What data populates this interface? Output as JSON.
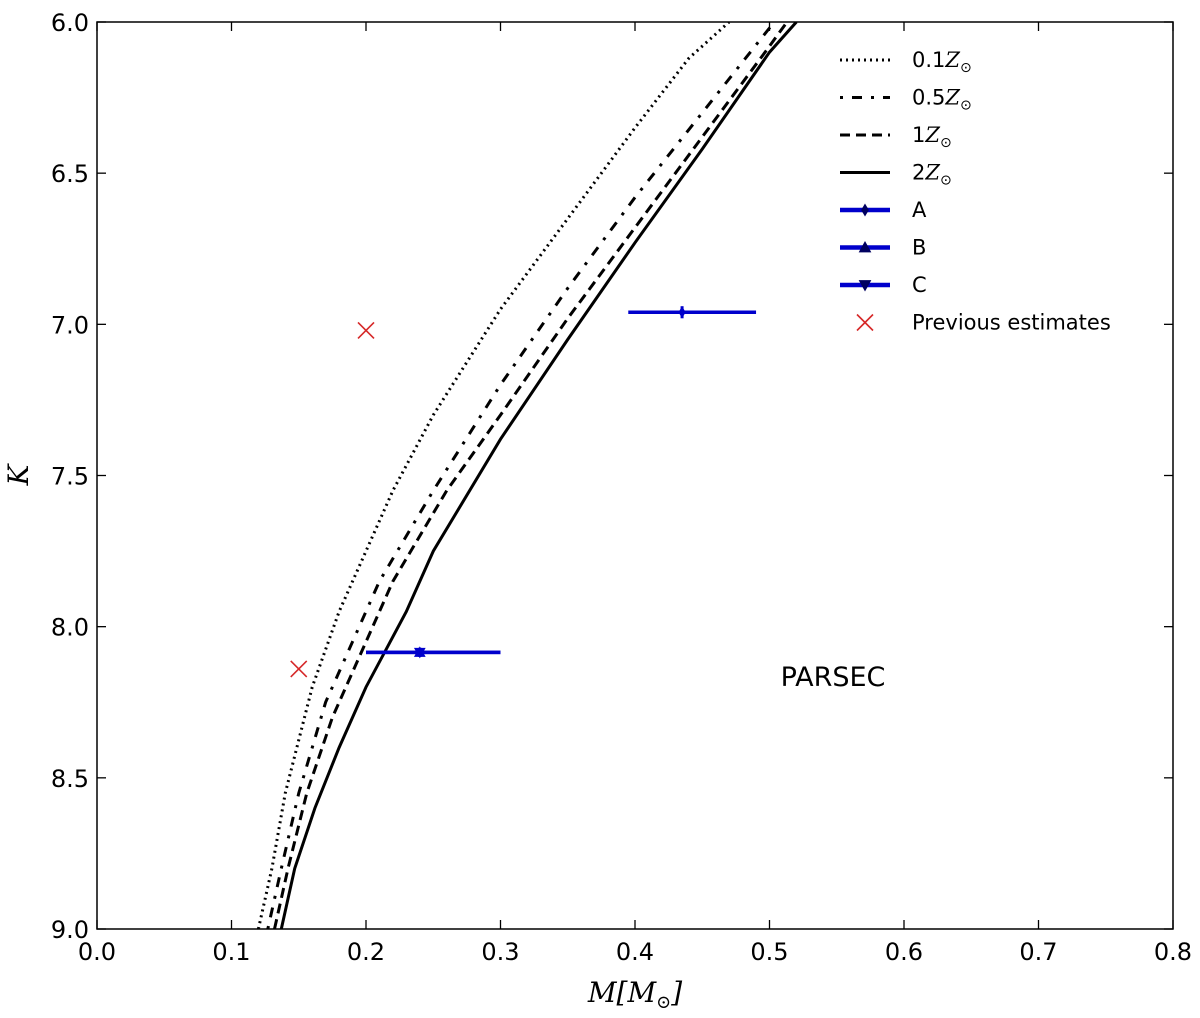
{
  "chart_data": {
    "type": "line",
    "title": "",
    "xlabel": "M[M_⊙]",
    "xlabel_parts": {
      "main": "M[M",
      "sub": "⊙",
      "close": "]"
    },
    "ylabel": "K",
    "xlim": [
      0.0,
      0.8
    ],
    "ylim": [
      6.0,
      9.0
    ],
    "y_inverted": true,
    "grid": false,
    "legend_position": "top-right",
    "x_ticks": [
      "0.0",
      "0.1",
      "0.2",
      "0.3",
      "0.4",
      "0.5",
      "0.6",
      "0.7",
      "0.8"
    ],
    "y_ticks": [
      "6.0",
      "6.5",
      "7.0",
      "7.5",
      "8.0",
      "8.5",
      "9.0"
    ],
    "annotation": "PARSEC",
    "colors": {
      "isochrone": "#000000",
      "measurement": "#0000cc",
      "previous": "#d62728"
    },
    "series": [
      {
        "name": "0.1Z_⊙",
        "label_num": "0.1",
        "label_sym": "Z",
        "label_sub": "⊙",
        "style": "dotted",
        "points": [
          [
            0.12,
            9.0
          ],
          [
            0.13,
            8.8
          ],
          [
            0.14,
            8.55
          ],
          [
            0.16,
            8.2
          ],
          [
            0.18,
            7.95
          ],
          [
            0.2,
            7.75
          ],
          [
            0.22,
            7.55
          ],
          [
            0.25,
            7.3
          ],
          [
            0.3,
            6.95
          ],
          [
            0.35,
            6.65
          ],
          [
            0.4,
            6.35
          ],
          [
            0.44,
            6.12
          ],
          [
            0.47,
            6.0
          ]
        ]
      },
      {
        "name": "0.5Z_⊙",
        "label_num": "0.5",
        "label_sym": "Z",
        "label_sub": "⊙",
        "style": "dashdot",
        "points": [
          [
            0.127,
            9.0
          ],
          [
            0.137,
            8.8
          ],
          [
            0.15,
            8.55
          ],
          [
            0.17,
            8.25
          ],
          [
            0.19,
            8.05
          ],
          [
            0.21,
            7.85
          ],
          [
            0.25,
            7.55
          ],
          [
            0.3,
            7.2
          ],
          [
            0.35,
            6.88
          ],
          [
            0.4,
            6.58
          ],
          [
            0.45,
            6.3
          ],
          [
            0.5,
            6.02
          ],
          [
            0.503,
            6.0
          ]
        ]
      },
      {
        "name": "1Z_⊙",
        "label_num": "1",
        "label_sym": "Z",
        "label_sub": "⊙",
        "style": "dashed",
        "points": [
          [
            0.132,
            9.0
          ],
          [
            0.142,
            8.8
          ],
          [
            0.156,
            8.55
          ],
          [
            0.175,
            8.3
          ],
          [
            0.195,
            8.1
          ],
          [
            0.22,
            7.85
          ],
          [
            0.26,
            7.55
          ],
          [
            0.3,
            7.3
          ],
          [
            0.35,
            6.98
          ],
          [
            0.4,
            6.68
          ],
          [
            0.45,
            6.38
          ],
          [
            0.5,
            6.08
          ],
          [
            0.513,
            6.0
          ]
        ]
      },
      {
        "name": "2Z_⊙",
        "label_num": "2",
        "label_sym": "Z",
        "label_sub": "⊙",
        "style": "solid",
        "points": [
          [
            0.137,
            9.0
          ],
          [
            0.147,
            8.8
          ],
          [
            0.162,
            8.6
          ],
          [
            0.18,
            8.4
          ],
          [
            0.2,
            8.2
          ],
          [
            0.23,
            7.95
          ],
          [
            0.25,
            7.75
          ],
          [
            0.3,
            7.38
          ],
          [
            0.35,
            7.05
          ],
          [
            0.4,
            6.73
          ],
          [
            0.45,
            6.42
          ],
          [
            0.5,
            6.1
          ],
          [
            0.52,
            6.0
          ]
        ]
      }
    ],
    "measurements": [
      {
        "name": "A",
        "marker": "diamond",
        "x": 0.435,
        "y": 6.96,
        "xerr": [
          0.395,
          0.49
        ],
        "yerr": [
          6.94,
          6.98
        ]
      },
      {
        "name": "B",
        "marker": "triangle-up",
        "x": 0.24,
        "y": 8.085,
        "xerr": [
          0.2,
          0.3
        ],
        "yerr": [
          8.07,
          8.1
        ]
      },
      {
        "name": "C",
        "marker": "triangle-down",
        "x": 0.24,
        "y": 8.085,
        "xerr": [
          0.2,
          0.3
        ],
        "yerr": [
          8.07,
          8.1
        ]
      }
    ],
    "previous_estimates": {
      "name": "Previous estimates",
      "points": [
        [
          0.2,
          7.02
        ],
        [
          0.15,
          8.14
        ]
      ]
    }
  }
}
